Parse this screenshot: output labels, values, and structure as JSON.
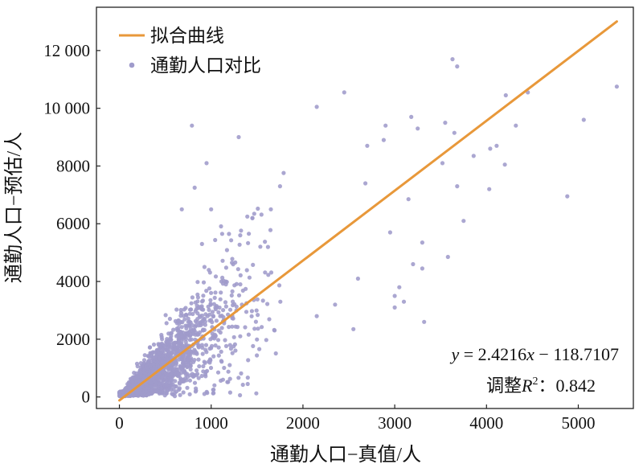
{
  "chart_data": {
    "type": "scatter",
    "xlabel": "通勤人口−真值/人",
    "ylabel": "通勤人口−预估/人",
    "xlim": [
      -250,
      5600
    ],
    "ylim": [
      -400,
      13500
    ],
    "xticks": [
      {
        "value": 0,
        "label": "0"
      },
      {
        "value": 1000,
        "label": "1000"
      },
      {
        "value": 2000,
        "label": "2000"
      },
      {
        "value": 3000,
        "label": "3000"
      },
      {
        "value": 4000,
        "label": "4000"
      },
      {
        "value": 5000,
        "label": "5000"
      }
    ],
    "yticks": [
      {
        "value": 0,
        "label": "0"
      },
      {
        "value": 2000,
        "label": "2000"
      },
      {
        "value": 4000,
        "label": "4000"
      },
      {
        "value": 6000,
        "label": "6000"
      },
      {
        "value": 8000,
        "label": "8000"
      },
      {
        "value": 10000,
        "label": "10 000"
      },
      {
        "value": 12000,
        "label": "12 000"
      }
    ],
    "grid": false,
    "legend": {
      "position": "top-left",
      "items": [
        {
          "label": "拟合曲线",
          "kind": "line",
          "color": "#E8983A"
        },
        {
          "label": "通勤人口对比",
          "kind": "point",
          "color": "#9F9BCB"
        }
      ]
    },
    "fit": {
      "slope": 2.4216,
      "intercept": -118.7107,
      "x_range": [
        0,
        5420
      ],
      "color": "#E8983A",
      "equation": {
        "y": "y",
        "eq": " = 2.4216",
        "x": "x",
        "rest": " − 118.7107"
      },
      "r2": {
        "prefix": "调整",
        "R": "R",
        "sup": "2",
        "suffix": "：0.842"
      }
    },
    "scatter_color": "#9F9BCB",
    "outlier_points": [
      [
        3630,
        11700
      ],
      [
        4450,
        10550
      ],
      [
        3680,
        11450
      ],
      [
        5420,
        10750
      ],
      [
        4210,
        10450
      ],
      [
        2450,
        10550
      ],
      [
        2150,
        10050
      ],
      [
        5060,
        9600
      ],
      [
        4320,
        9400
      ],
      [
        3180,
        9700
      ],
      [
        3550,
        9500
      ],
      [
        3250,
        9300
      ],
      [
        4110,
        8700
      ],
      [
        4040,
        8600
      ],
      [
        3650,
        9150
      ],
      [
        3860,
        8350
      ],
      [
        4200,
        8050
      ],
      [
        4880,
        6950
      ],
      [
        4030,
        7200
      ],
      [
        3580,
        4850
      ],
      [
        3000,
        3100
      ],
      [
        3100,
        3300
      ],
      [
        3320,
        2600
      ],
      [
        3050,
        3800
      ],
      [
        2550,
        2350
      ],
      [
        1650,
        6500
      ],
      [
        1750,
        7300
      ],
      [
        1300,
        9000
      ],
      [
        790,
        9400
      ],
      [
        950,
        8100
      ],
      [
        820,
        7250
      ],
      [
        680,
        6500
      ],
      [
        3520,
        8100
      ],
      [
        2900,
        9400
      ],
      [
        2700,
        8700
      ],
      [
        2880,
        8900
      ],
      [
        2680,
        7400
      ],
      [
        3680,
        7300
      ],
      [
        3750,
        6100
      ],
      [
        3300,
        5350
      ],
      [
        3150,
        6850
      ],
      [
        2950,
        5700
      ],
      [
        2350,
        3200
      ],
      [
        2150,
        2800
      ],
      [
        2600,
        4100
      ],
      [
        3000,
        3500
      ],
      [
        3200,
        4600
      ],
      [
        3300,
        4450
      ],
      [
        1450,
        6200
      ],
      [
        1120,
        5650
      ],
      [
        1000,
        6500
      ],
      [
        900,
        5300
      ]
    ],
    "generated_points_note": ""
  }
}
